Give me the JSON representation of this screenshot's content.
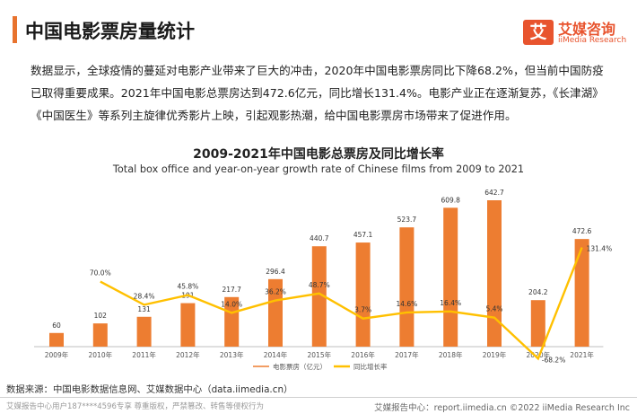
{
  "header": {
    "title": "中国电影票房量统计",
    "logo_mark": "艾",
    "logo_cn": "艾媒咨询",
    "logo_en": "iiMedia Research"
  },
  "intro": "数据显示，全球疫情的蔓延对电影产业带来了巨大的冲击，2020年中国电影票房同比下降68.2%，但当前中国防疫已取得重要成果。2021年中国电影总票房达到472.6亿元，同比增长131.4%。电影产业正在逐渐复苏，《长津湖》《中国医生》等系列主旋律优秀影片上映，引起观影热潮，给中国电影票房市场带来了促进作用。",
  "chart_data": {
    "type": "bar",
    "title": "2009-2021年中国电影总票房及同比增长率",
    "subtitle": "Total box office and year-on-year growth rate of Chinese films from 2009 to 2021",
    "categories": [
      "2009年",
      "2010年",
      "2011年",
      "2012年",
      "2013年",
      "2014年",
      "2015年",
      "2016年",
      "2017年",
      "2018年",
      "2019年",
      "2020年",
      "2021年"
    ],
    "series": [
      {
        "name": "电影票房（亿元）",
        "type": "bar",
        "color": "#ed7d31",
        "values": [
          60,
          102,
          131,
          191,
          217.7,
          296.4,
          440.7,
          457.1,
          523.7,
          609.8,
          642.7,
          204.2,
          472.6
        ],
        "labels": [
          "60",
          "102",
          "131",
          "191",
          "217.7",
          "296.4",
          "440.7",
          "457.1",
          "523.7",
          "609.8",
          "642.7",
          "204.2",
          "472.6"
        ]
      },
      {
        "name": "同比增长率",
        "type": "line",
        "color": "#ffc000",
        "values": [
          null,
          70.0,
          28.4,
          45.8,
          14.0,
          36.2,
          48.7,
          3.7,
          14.6,
          16.4,
          5.4,
          -68.2,
          131.4
        ],
        "labels": [
          "",
          "70.0%",
          "28.4%",
          "45.8%",
          "14.0%",
          "36.2%",
          "48.7%",
          "3.7%",
          "14.6%",
          "16.4%",
          "5.4%",
          "-68.2%",
          "131.4%"
        ]
      }
    ],
    "legend_position": "bottom",
    "grid": false
  },
  "footer": {
    "source": "数据来源：中国电影数据信息网、艾媒数据中心（data.iimedia.cn）",
    "left_note": "艾媒报告中心用户187****4596专享 尊重版权，严禁篡改、转售等侵权行为",
    "right_note": "艾媒报告中心：report.iimedia.cn  ©2022  iiMedia Research  Inc"
  }
}
